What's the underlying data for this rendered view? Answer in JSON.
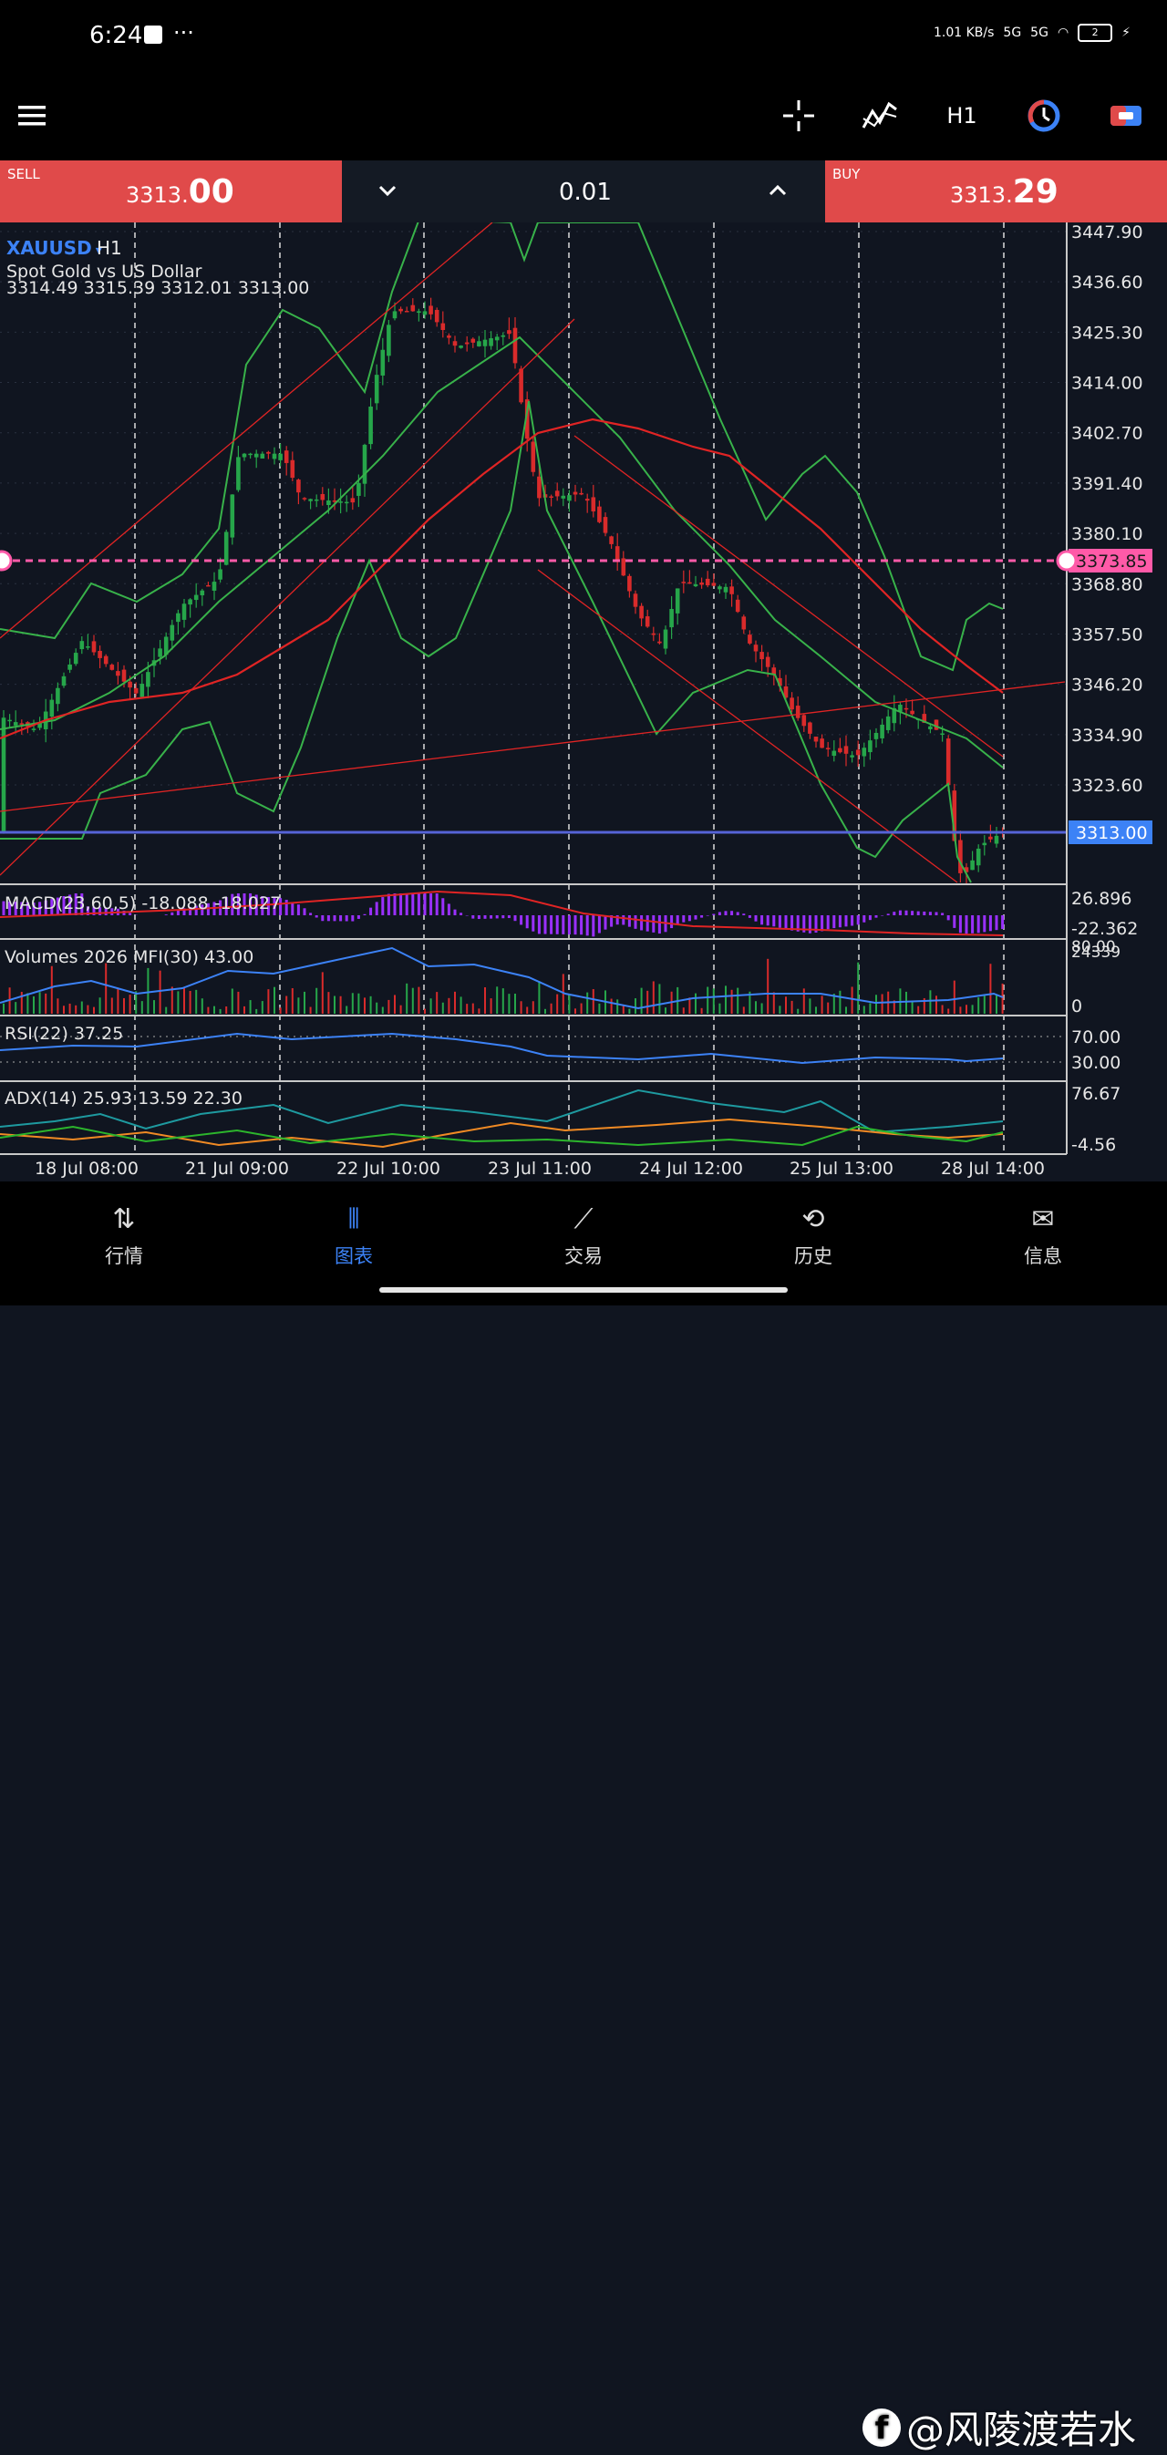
{
  "status_bar": {
    "time": "6:24",
    "dots": "···",
    "net_speed": "1.01 KB/s",
    "signal1": "5G",
    "signal2": "5G",
    "battery": "2"
  },
  "toolbar": {
    "menu_icon": "hamburger-menu-icon",
    "crosshair_icon": "crosshair-icon",
    "indicators_icon": "indicators-icon",
    "timeframe": "H1",
    "clock_icon": "history-clock-icon",
    "objects_icon": "objects-icon"
  },
  "trade": {
    "sell_label": "SELL",
    "sell_price_main": "3313.",
    "sell_price_big": "00",
    "buy_label": "BUY",
    "buy_price_main": "3313.",
    "buy_price_big": "29",
    "lot": "0.01",
    "lot_down": "⌄",
    "lot_up": "⌃"
  },
  "chart": {
    "symbol": "XAUUSD",
    "symbol_arrow": "▾",
    "timeframe": "H1",
    "description": "Spot Gold vs US Dollar",
    "ohlc": "3314.49 3315.39 3312.01 3313.00",
    "price_ticks": [
      "3447.90",
      "3436.60",
      "3425.30",
      "3414.00",
      "3402.70",
      "3391.40",
      "3380.10",
      "3368.80",
      "3357.50",
      "3346.20",
      "3334.90",
      "3323.60"
    ],
    "level_line_label": "3373.85",
    "current_price_label": "3313.00",
    "colors": {
      "up": "#26a64a",
      "down": "#d92b2b",
      "band": "#38b24a",
      "ma": "#e02424",
      "level": "#ff5aa8",
      "current": "#5563d6",
      "macd_hist": "#9a30ff",
      "mfi": "#3c82f6",
      "adx": "#1e9aa0",
      "plus_di": "#f08a24",
      "minus_di": "#2cb52c"
    },
    "macd": {
      "label": "MACD(23,60,5) -18.088 -18.027",
      "tick_top": "26.896",
      "tick_bottom": "-22.362"
    },
    "volumes": {
      "label": "Volumes 2026 MFI(30) 43.00",
      "tick_top_a": "80.00",
      "tick_top_b": "24339",
      "tick_bottom": "0"
    },
    "rsi": {
      "label": "RSI(22) 37.25",
      "tick_top": "70.00",
      "tick_bottom": "30.00"
    },
    "adx": {
      "label": "ADX(14) 25.93 13.59 22.30",
      "tick_top": "76.67",
      "tick_bottom": "-4.56"
    },
    "time_labels": [
      "18 Jul 08:00",
      "21 Jul 09:00",
      "22 Jul 10:00",
      "23 Jul 11:00",
      "24 Jul 12:00",
      "25 Jul 13:00",
      "28 Jul 14:00"
    ]
  },
  "nav": [
    {
      "label": "行情",
      "icon": "quotes-arrows-icon",
      "glyph": "⇅"
    },
    {
      "label": "图表",
      "icon": "chart-candles-icon",
      "glyph": "⫴"
    },
    {
      "label": "交易",
      "icon": "trade-line-icon",
      "glyph": "⟋"
    },
    {
      "label": "历史",
      "icon": "history-icon",
      "glyph": "⟲"
    },
    {
      "label": "信息",
      "icon": "messages-icon",
      "glyph": "✉"
    }
  ],
  "watermark": "@风陵渡若水"
}
